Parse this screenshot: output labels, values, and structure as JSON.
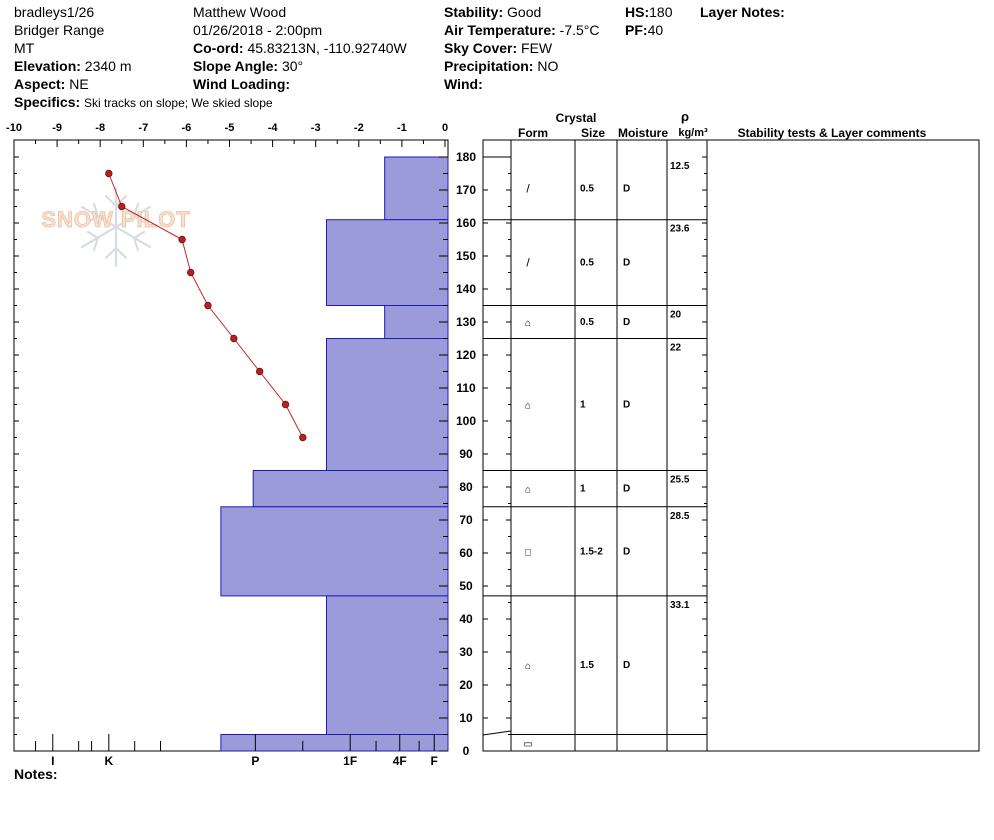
{
  "header": {
    "pit_name": "bradleys1/26",
    "range": "Bridger Range",
    "state": "MT",
    "elevation_label": "Elevation:",
    "elevation_value": "2340 m",
    "aspect_label": "Aspect:",
    "aspect_value": "NE",
    "specifics_label": "Specifics:",
    "specifics_value": "Ski tracks on slope; We skied slope",
    "observer": "Matthew  Wood",
    "datetime": "01/26/2018 - 2:00pm",
    "coord_label": "Co-ord:",
    "coord_value": "45.83213N, -110.92740W",
    "slope_label": "Slope Angle:",
    "slope_value": "30°",
    "wind_loading_label": "Wind Loading:",
    "wind_loading_value": "",
    "stability_label": "Stability:",
    "stability_value": "Good",
    "air_temp_label": "Air Temperature:",
    "air_temp_value": "-7.5°C",
    "sky_label": "Sky Cover:",
    "sky_value": "FEW",
    "precip_label": "Precipitation:",
    "precip_value": "NO",
    "wind_label": "Wind:",
    "wind_value": "",
    "hs_label": "HS:",
    "hs_value": "180",
    "pf_label": "PF:",
    "pf_value": "40",
    "layer_notes_label": "Layer Notes:",
    "notes_label": "Notes:"
  },
  "watermark": {
    "text": "SNOW PILOT"
  },
  "table": {
    "crystal_label": "Crystal",
    "form_label": "Form",
    "size_label": "Size",
    "moisture_label": "Moisture",
    "rho_label": "ρ",
    "density_unit_label": "kg/m³",
    "comments_label": "Stability tests & Layer comments"
  },
  "chart_data": {
    "type": "area",
    "temp_axis": {
      "label": "",
      "range": [
        -10,
        0
      ],
      "ticks": [
        "-10",
        "-9",
        "-8",
        "-7",
        "-6",
        "-5",
        "-4",
        "-3",
        "-2",
        "-1",
        "0"
      ]
    },
    "height_axis": {
      "label": "",
      "range": [
        0,
        180
      ],
      "ticks": [
        "0",
        "10",
        "20",
        "30",
        "40",
        "50",
        "60",
        "70",
        "80",
        "90",
        "100",
        "110",
        "120",
        "130",
        "140",
        "150",
        "160",
        "170",
        "180"
      ]
    },
    "hardness_labels": [
      "I",
      "K",
      "P",
      "1F",
      "4F",
      "F"
    ],
    "hardness_profile": [
      {
        "top": 180,
        "bottom": 161,
        "hardness_value": -1.4
      },
      {
        "top": 161,
        "bottom": 135,
        "hardness_value": -2.75
      },
      {
        "top": 135,
        "bottom": 125,
        "hardness_value": -1.4
      },
      {
        "top": 125,
        "bottom": 85,
        "hardness_value": -2.75
      },
      {
        "top": 85,
        "bottom": 74,
        "hardness_value": -4.45
      },
      {
        "top": 74,
        "bottom": 47,
        "hardness_value": -5.2
      },
      {
        "top": 47,
        "bottom": 5,
        "hardness_value": -2.75
      },
      {
        "top": 5,
        "bottom": 0,
        "hardness_value": -5.2
      }
    ],
    "temperature_profile": [
      {
        "height": 175,
        "temp": -7.8
      },
      {
        "height": 165,
        "temp": -7.5
      },
      {
        "height": 155,
        "temp": -6.1
      },
      {
        "height": 145,
        "temp": -5.9
      },
      {
        "height": 135,
        "temp": -5.5
      },
      {
        "height": 125,
        "temp": -4.9
      },
      {
        "height": 115,
        "temp": -4.3
      },
      {
        "height": 105,
        "temp": -3.7
      },
      {
        "height": 95,
        "temp": -3.3
      }
    ],
    "layers": [
      {
        "top": 180,
        "bottom": 161,
        "form": "/",
        "size": "0.5",
        "moisture": "D",
        "density": "12.5"
      },
      {
        "top": 161,
        "bottom": 135,
        "form": "/",
        "size": "0.5",
        "moisture": "D",
        "density": "23.6"
      },
      {
        "top": 135,
        "bottom": 125,
        "form": "⌂",
        "size": "0.5",
        "moisture": "D",
        "density": "20"
      },
      {
        "top": 125,
        "bottom": 85,
        "form": "⌂",
        "size": "1",
        "moisture": "D",
        "density": "22"
      },
      {
        "top": 85,
        "bottom": 74,
        "form": "⌂",
        "size": "1",
        "moisture": "D",
        "density": "25.5"
      },
      {
        "top": 74,
        "bottom": 47,
        "form": "□",
        "size": "1.5-2",
        "moisture": "D",
        "density": "28.5"
      },
      {
        "top": 47,
        "bottom": 5,
        "form": "⌂",
        "size": "1.5",
        "moisture": "D",
        "density": "33.1"
      },
      {
        "top": 5,
        "bottom": 0,
        "form": "▭",
        "size": "",
        "moisture": "",
        "density": ""
      }
    ],
    "colors": {
      "fill": "#9b9bd9",
      "stroke": "#1c1cb4",
      "temp_line": "#c0282a",
      "temp_point": "#b22222"
    }
  }
}
